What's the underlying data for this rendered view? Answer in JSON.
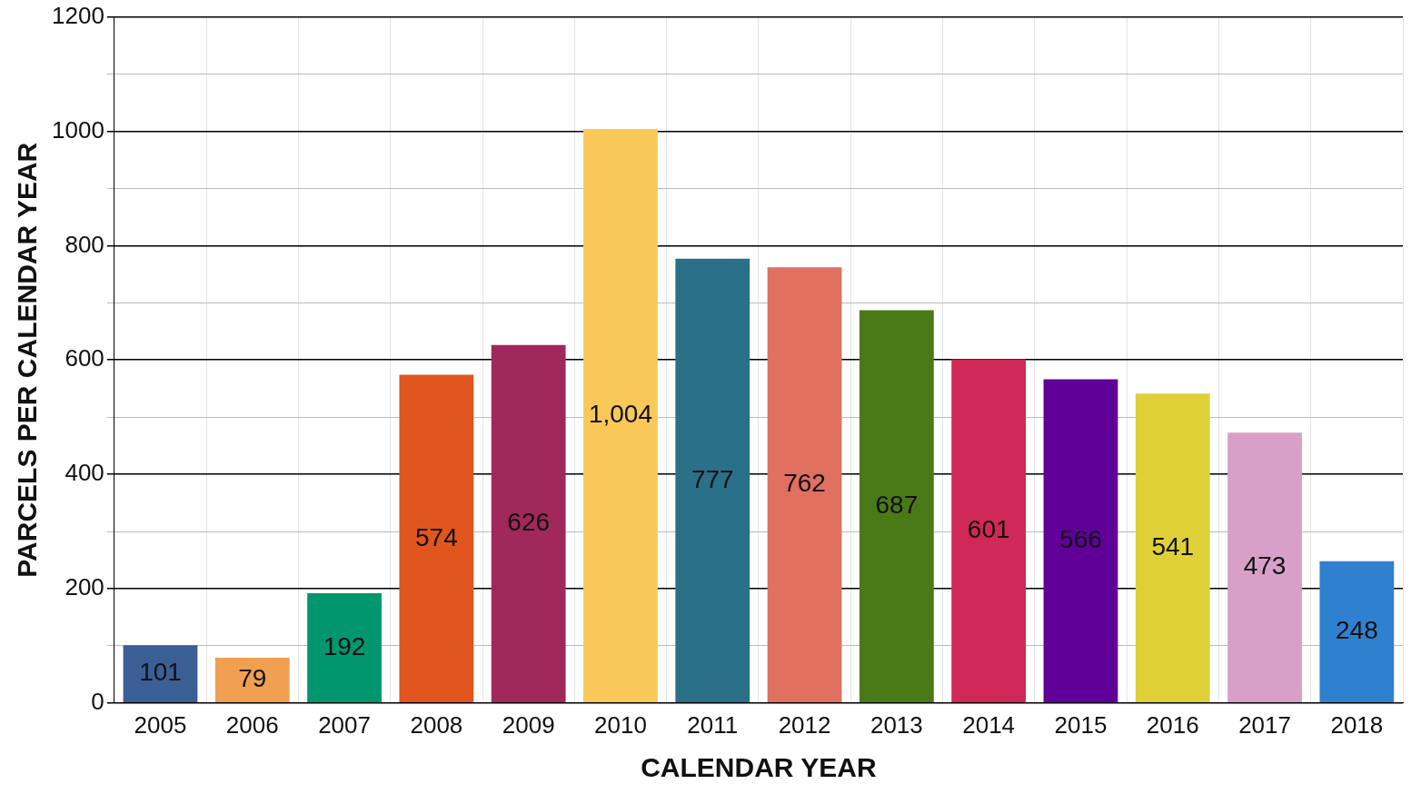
{
  "chart_data": {
    "type": "bar",
    "xlabel": "CALENDAR YEAR",
    "ylabel": "PARCELS PER CALENDAR YEAR",
    "categories": [
      "2005",
      "2006",
      "2007",
      "2008",
      "2009",
      "2010",
      "2011",
      "2012",
      "2013",
      "2014",
      "2015",
      "2016",
      "2017",
      "2018"
    ],
    "values": [
      101,
      79,
      192,
      574,
      626,
      1004,
      777,
      762,
      687,
      601,
      566,
      541,
      473,
      248
    ],
    "value_labels": [
      "101",
      "79",
      "192",
      "574",
      "626",
      "1,004",
      "777",
      "762",
      "687",
      "601",
      "566",
      "541",
      "473",
      "248"
    ],
    "colors": [
      "#3a5f95",
      "#f0a050",
      "#00966e",
      "#e0561e",
      "#a0285a",
      "#f8c858",
      "#2a7088",
      "#e07060",
      "#4a7a18",
      "#d02858",
      "#600098",
      "#e0d038",
      "#d8a0c8",
      "#3080d0"
    ],
    "ylim": [
      0,
      1200
    ],
    "yticks": [
      0,
      {
        "value": 100,
        "label": null
      },
      200,
      {
        "value": 300,
        "label": null
      },
      400,
      {
        "value": 500,
        "label": null
      },
      600,
      {
        "value": 700,
        "label": null
      },
      800,
      {
        "value": 900,
        "label": null
      },
      1000,
      {
        "value": 1100,
        "label": null
      },
      1200
    ],
    "grid": true,
    "legend": false
  }
}
